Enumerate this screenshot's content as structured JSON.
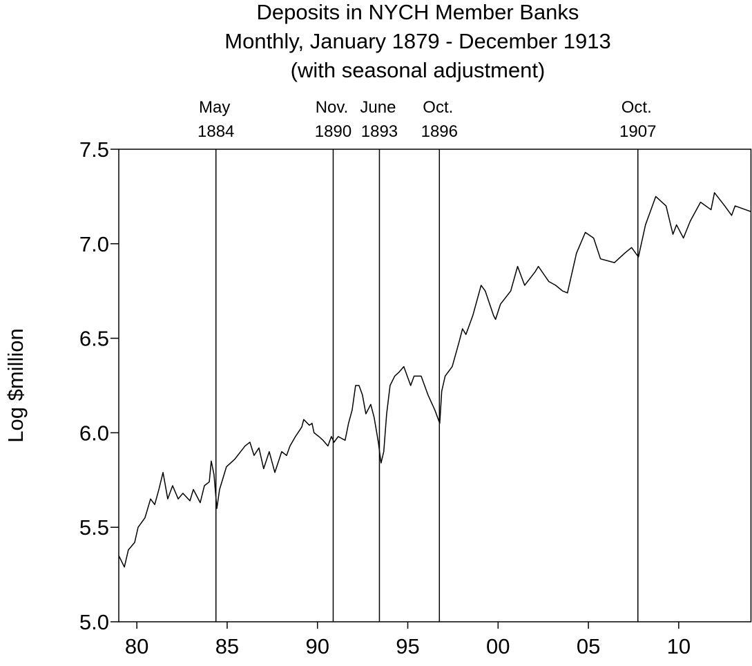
{
  "chart_data": {
    "type": "line",
    "title": "Deposits in NYCH Member Banks",
    "subtitle": "Monthly, January 1879 - December 1913",
    "subtitle2": "(with seasonal adjustment)",
    "y_label": "Log $million",
    "xlim": [
      1879,
      1914
    ],
    "ylim": [
      5.0,
      7.5
    ],
    "xticks": [
      {
        "value": 1880,
        "label": "80"
      },
      {
        "value": 1885,
        "label": "85"
      },
      {
        "value": 1890,
        "label": "90"
      },
      {
        "value": 1895,
        "label": "95"
      },
      {
        "value": 1900,
        "label": "00"
      },
      {
        "value": 1905,
        "label": "05"
      },
      {
        "value": 1910,
        "label": "10"
      }
    ],
    "yticks": [
      {
        "value": 5.0,
        "label": "5.0"
      },
      5.5,
      {
        "value": 6.0,
        "label": "6.0"
      },
      6.5,
      {
        "value": 7.0,
        "label": "7.0"
      },
      7.5
    ],
    "events": [
      {
        "month": "May",
        "year": "1884",
        "x": 1884.38
      },
      {
        "month": "Nov.",
        "year": "1890",
        "x": 1890.87
      },
      {
        "month": "June",
        "year": "1893",
        "x": 1893.43
      },
      {
        "month": "Oct.",
        "year": "1896",
        "x": 1896.75
      },
      {
        "month": "Oct.",
        "year": "1907",
        "x": 1907.74
      }
    ],
    "series": [
      {
        "name": "Deposits",
        "color": "#000000",
        "x": [
          1879.0,
          1879.31,
          1879.53,
          1879.88,
          1880.07,
          1880.45,
          1880.76,
          1880.99,
          1881.22,
          1881.45,
          1881.71,
          1881.98,
          1882.29,
          1882.55,
          1882.94,
          1883.13,
          1883.51,
          1883.74,
          1884.01,
          1884.12,
          1884.27,
          1884.43,
          1884.58,
          1884.96,
          1885.42,
          1885.99,
          1886.26,
          1886.49,
          1886.76,
          1887.02,
          1887.33,
          1887.64,
          1888.02,
          1888.29,
          1888.48,
          1888.78,
          1889.13,
          1889.24,
          1889.55,
          1889.7,
          1889.81,
          1890.08,
          1890.31,
          1890.58,
          1890.77,
          1890.92,
          1891.15,
          1891.53,
          1891.72,
          1891.92,
          1892.11,
          1892.3,
          1892.49,
          1892.68,
          1892.95,
          1893.14,
          1893.37,
          1893.52,
          1893.67,
          1893.83,
          1894.02,
          1894.28,
          1894.51,
          1894.78,
          1894.97,
          1895.16,
          1895.35,
          1895.74,
          1895.93,
          1896.12,
          1896.5,
          1896.77,
          1896.88,
          1897.07,
          1897.46,
          1897.84,
          1898.03,
          1898.22,
          1898.6,
          1899.06,
          1899.29,
          1899.75,
          1899.86,
          1900.13,
          1900.7,
          1901.08,
          1901.47,
          1902.04,
          1902.23,
          1902.81,
          1903.19,
          1903.57,
          1903.84,
          1904.34,
          1904.83,
          1905.29,
          1905.67,
          1906.44,
          1907.01,
          1907.39,
          1907.77,
          1908.16,
          1908.54,
          1908.73,
          1909.3,
          1909.68,
          1909.88,
          1910.26,
          1910.64,
          1911.21,
          1911.79,
          1911.98,
          1912.55,
          1912.93,
          1913.12,
          1914.0
        ],
        "values": [
          5.35,
          5.29,
          5.38,
          5.42,
          5.5,
          5.55,
          5.65,
          5.62,
          5.7,
          5.79,
          5.65,
          5.72,
          5.65,
          5.68,
          5.64,
          5.7,
          5.63,
          5.72,
          5.74,
          5.85,
          5.78,
          5.6,
          5.7,
          5.82,
          5.86,
          5.93,
          5.95,
          5.88,
          5.92,
          5.81,
          5.9,
          5.79,
          5.9,
          5.88,
          5.93,
          5.98,
          6.03,
          6.07,
          6.04,
          6.05,
          6.0,
          5.98,
          5.96,
          5.93,
          5.98,
          5.95,
          5.98,
          5.96,
          6.05,
          6.12,
          6.25,
          6.25,
          6.2,
          6.1,
          6.15,
          6.08,
          5.95,
          5.84,
          5.9,
          6.1,
          6.25,
          6.3,
          6.32,
          6.35,
          6.3,
          6.25,
          6.3,
          6.3,
          6.25,
          6.2,
          6.12,
          6.05,
          6.22,
          6.3,
          6.35,
          6.48,
          6.55,
          6.52,
          6.62,
          6.78,
          6.75,
          6.62,
          6.6,
          6.68,
          6.75,
          6.88,
          6.78,
          6.85,
          6.88,
          6.8,
          6.78,
          6.75,
          6.74,
          6.95,
          7.06,
          7.03,
          6.92,
          6.9,
          6.95,
          6.98,
          6.93,
          7.1,
          7.2,
          7.25,
          7.2,
          7.05,
          7.1,
          7.03,
          7.12,
          7.22,
          7.18,
          7.27,
          7.2,
          7.15,
          7.2,
          7.17
        ]
      }
    ]
  }
}
